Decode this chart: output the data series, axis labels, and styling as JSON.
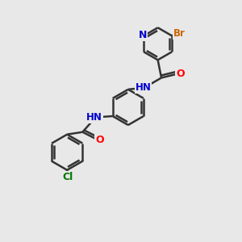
{
  "background_color": "#e8e8e8",
  "atom_colors": {
    "N": "#0000cc",
    "O": "#ff0000",
    "Br": "#cc6600",
    "Cl": "#007700",
    "C": "#333333",
    "H": "#555555"
  },
  "bond_color": "#333333",
  "bond_width": 1.8,
  "figsize": [
    3.0,
    3.0
  ],
  "dpi": 100
}
